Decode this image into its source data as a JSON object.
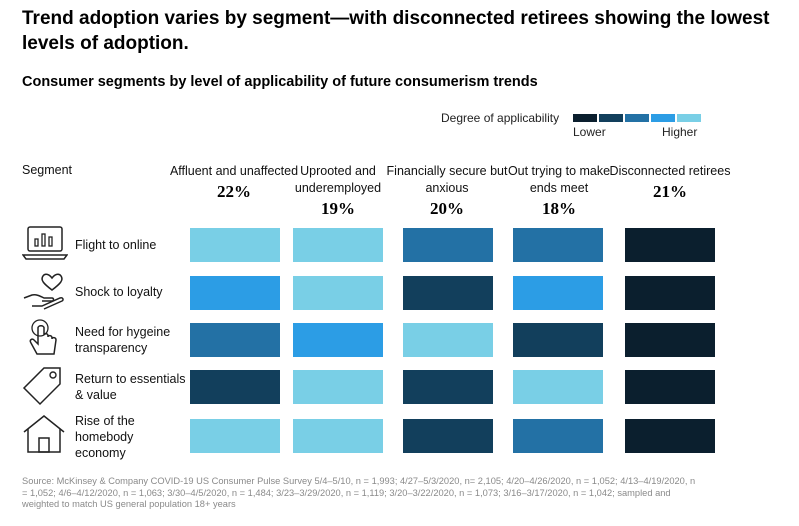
{
  "title": "Trend adoption varies by segment—with disconnected retirees showing the lowest levels of adoption.",
  "subtitle": "Consumer segments by level of applicability of future consumerism trends",
  "legend": {
    "label": "Degree of applicability",
    "lower": "Lower",
    "higher": "Higher",
    "colors": [
      "#0b1f2e",
      "#123f5c",
      "#2371a5",
      "#2c9de5",
      "#79cfe6"
    ]
  },
  "segment_header": "Segment",
  "chart_data": {
    "type": "heatmap",
    "columns": [
      {
        "name": "Affluent and unaffected",
        "share": "22%"
      },
      {
        "name": "Uprooted and underemployed",
        "share": "19%"
      },
      {
        "name": "Financially secure but anxious",
        "share": "20%"
      },
      {
        "name": "Out trying to make ends meet",
        "share": "18%"
      },
      {
        "name": "Disconnected retirees",
        "share": "21%"
      }
    ],
    "rows": [
      {
        "name": "Flight to online",
        "icon": "laptop-chart-icon"
      },
      {
        "name": "Shock to loyalty",
        "icon": "hand-heart-icon"
      },
      {
        "name": "Need for hygeine transparency",
        "icon": "finger-touch-icon"
      },
      {
        "name": "Return to essentials & value",
        "icon": "price-tag-icon"
      },
      {
        "name": "Rise of the homebody economy",
        "icon": "house-icon"
      }
    ],
    "values": [
      [
        5,
        5,
        3,
        3,
        1
      ],
      [
        4,
        5,
        2,
        4,
        1
      ],
      [
        3,
        4,
        5,
        2,
        1
      ],
      [
        2,
        5,
        2,
        5,
        1
      ],
      [
        5,
        5,
        2,
        3,
        1
      ]
    ],
    "scale": [
      1,
      5
    ],
    "scale_note_levels": [
      "Lower",
      "Higher"
    ]
  },
  "source": "Source: McKinsey & Company COVID-19 US Consumer Pulse Survey 5/4–5/10, n = 1,993; 4/27–5/3/2020, n= 2,105; 4/20–4/26/2020, n = 1,052; 4/13–4/19/2020, n = 1,052; 4/6–4/12/2020, n = 1,063; 3/30–4/5/2020, n = 1,484; 3/23–3/29/2020, n = 1,119; 3/20–3/22/2020, n = 1,073; 3/16–3/17/2020, n = 1,042; sampled and weighted to match US general population 18+ years"
}
